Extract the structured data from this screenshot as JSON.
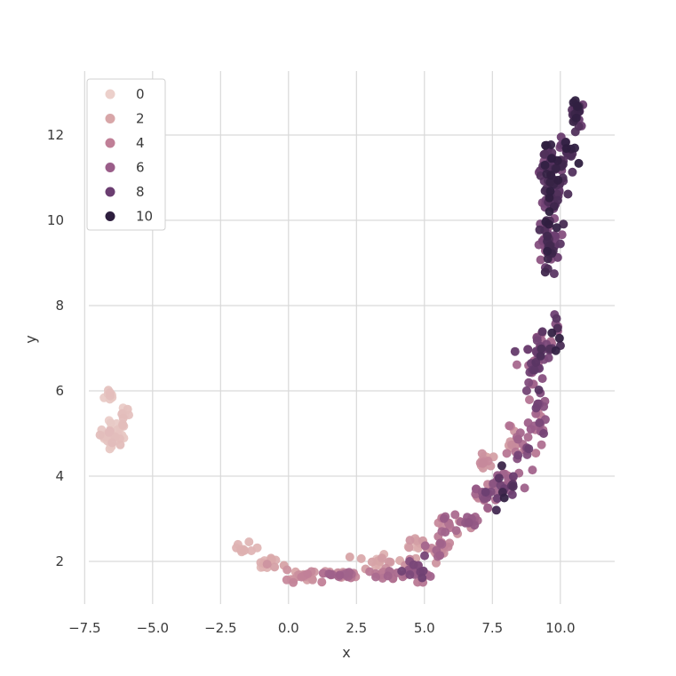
{
  "chart_data": {
    "type": "scatter",
    "title": "",
    "xlabel": "x",
    "ylabel": "y",
    "xlim": [
      -8,
      12
    ],
    "ylim": [
      1,
      13.5
    ],
    "xticks": [
      "−7.5",
      "−5.0",
      "−2.5",
      "0.0",
      "2.5",
      "5.0",
      "7.5",
      "10.0"
    ],
    "xtick_values": [
      -7.5,
      -5.0,
      -2.5,
      0.0,
      2.5,
      5.0,
      7.5,
      10.0
    ],
    "yticks": [
      "2",
      "4",
      "6",
      "8",
      "10",
      "12"
    ],
    "ytick_values": [
      2,
      4,
      6,
      8,
      10,
      12
    ],
    "grid": true,
    "legend_position": "top-left",
    "legend": {
      "entries": [
        "0",
        "2",
        "4",
        "6",
        "8",
        "10"
      ],
      "colors": [
        "#ecd0cb",
        "#d8a6a8",
        "#c07f97",
        "#9a5d89",
        "#6b3e71",
        "#2d1e3e"
      ]
    },
    "hue_range": [
      0,
      10
    ],
    "color_stops": [
      "#ecd0cb",
      "#d8a6a8",
      "#c07f97",
      "#9a5d89",
      "#6b3e71",
      "#2d1e3e"
    ],
    "point_groups": [
      {
        "x": -6.6,
        "y": 5.9,
        "dx": 0.15,
        "dy": 0.2,
        "n": 8,
        "h": [
          0,
          1
        ]
      },
      {
        "x": -6.5,
        "y": 5.0,
        "dx": 0.45,
        "dy": 0.25,
        "n": 35,
        "h": [
          0,
          1
        ]
      },
      {
        "x": -6.1,
        "y": 5.3,
        "dx": 0.2,
        "dy": 0.3,
        "n": 10,
        "h": [
          0,
          1
        ]
      },
      {
        "x": -1.6,
        "y": 2.3,
        "dx": 0.3,
        "dy": 0.15,
        "n": 10,
        "h": [
          1,
          2
        ]
      },
      {
        "x": -0.8,
        "y": 1.9,
        "dx": 0.4,
        "dy": 0.15,
        "n": 14,
        "h": [
          1,
          3
        ]
      },
      {
        "x": 0.5,
        "y": 1.65,
        "dx": 0.6,
        "dy": 0.1,
        "n": 24,
        "h": [
          2,
          4
        ]
      },
      {
        "x": 2.0,
        "y": 1.7,
        "dx": 0.7,
        "dy": 0.1,
        "n": 28,
        "h": [
          2,
          6
        ]
      },
      {
        "x": 3.3,
        "y": 2.0,
        "dx": 0.5,
        "dy": 0.15,
        "n": 14,
        "h": [
          1,
          3
        ]
      },
      {
        "x": 3.6,
        "y": 1.7,
        "dx": 0.5,
        "dy": 0.1,
        "n": 20,
        "h": [
          2,
          6
        ]
      },
      {
        "x": 4.7,
        "y": 1.8,
        "dx": 0.5,
        "dy": 0.2,
        "n": 30,
        "h": [
          3,
          8
        ]
      },
      {
        "x": 4.7,
        "y": 2.4,
        "dx": 0.4,
        "dy": 0.15,
        "n": 12,
        "h": [
          1,
          3
        ]
      },
      {
        "x": 5.5,
        "y": 2.3,
        "dx": 0.4,
        "dy": 0.25,
        "n": 20,
        "h": [
          2,
          6
        ]
      },
      {
        "x": 5.6,
        "y": 2.9,
        "dx": 0.4,
        "dy": 0.2,
        "n": 12,
        "h": [
          3,
          8
        ]
      },
      {
        "x": 6.4,
        "y": 2.9,
        "dx": 0.4,
        "dy": 0.25,
        "n": 18,
        "h": [
          3,
          7
        ]
      },
      {
        "x": 7.2,
        "y": 3.5,
        "dx": 0.4,
        "dy": 0.3,
        "n": 22,
        "h": [
          3,
          8
        ]
      },
      {
        "x": 7.2,
        "y": 4.3,
        "dx": 0.35,
        "dy": 0.2,
        "n": 14,
        "h": [
          1,
          4
        ]
      },
      {
        "x": 7.9,
        "y": 3.8,
        "dx": 0.4,
        "dy": 0.35,
        "n": 28,
        "h": [
          4,
          10
        ]
      },
      {
        "x": 8.2,
        "y": 4.8,
        "dx": 0.3,
        "dy": 0.3,
        "n": 14,
        "h": [
          2,
          5
        ]
      },
      {
        "x": 8.6,
        "y": 4.7,
        "dx": 0.35,
        "dy": 0.35,
        "n": 16,
        "h": [
          4,
          8
        ]
      },
      {
        "x": 9.2,
        "y": 5.4,
        "dx": 0.3,
        "dy": 0.5,
        "n": 22,
        "h": [
          4,
          8
        ]
      },
      {
        "x": 9.0,
        "y": 6.4,
        "dx": 0.35,
        "dy": 0.35,
        "n": 22,
        "h": [
          5,
          9
        ]
      },
      {
        "x": 9.3,
        "y": 7.1,
        "dx": 0.4,
        "dy": 0.35,
        "n": 26,
        "h": [
          5,
          9
        ]
      },
      {
        "x": 9.9,
        "y": 7.5,
        "dx": 0.2,
        "dy": 0.4,
        "n": 10,
        "h": [
          6,
          10
        ]
      },
      {
        "x": 9.5,
        "y": 9.5,
        "dx": 0.4,
        "dy": 0.6,
        "n": 60,
        "h": [
          6,
          10
        ]
      },
      {
        "x": 9.7,
        "y": 10.7,
        "dx": 0.35,
        "dy": 0.5,
        "n": 40,
        "h": [
          7,
          10
        ]
      },
      {
        "x": 9.6,
        "y": 11.4,
        "dx": 0.4,
        "dy": 0.5,
        "n": 40,
        "h": [
          7,
          10
        ]
      },
      {
        "x": 10.3,
        "y": 11.6,
        "dx": 0.3,
        "dy": 0.3,
        "n": 18,
        "h": [
          8,
          10
        ]
      },
      {
        "x": 10.6,
        "y": 12.5,
        "dx": 0.25,
        "dy": 0.25,
        "n": 30,
        "h": [
          8,
          10
        ]
      }
    ]
  }
}
